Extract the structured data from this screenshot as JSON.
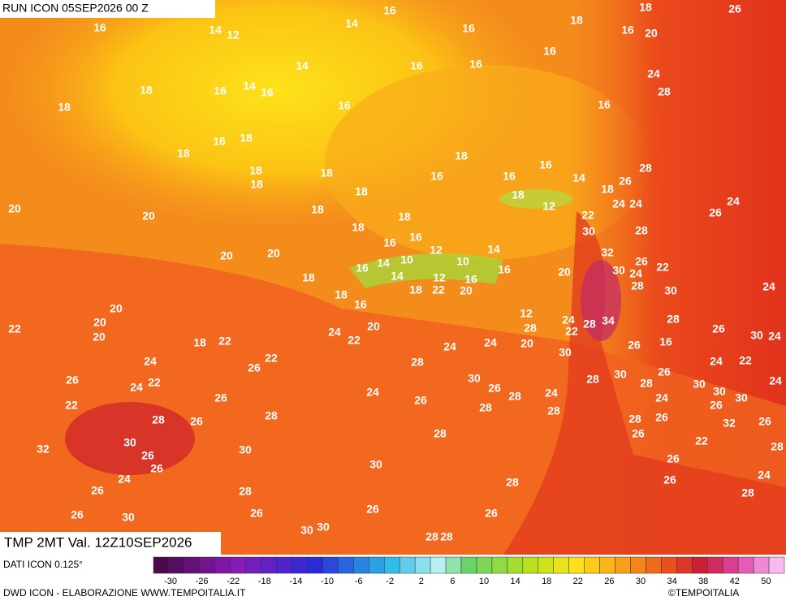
{
  "header": {
    "title": "RUN ICON 05SEP2026 00 Z"
  },
  "map": {
    "labels": [
      16,
      18,
      26,
      16,
      14,
      12,
      14,
      18,
      16,
      20,
      16,
      14,
      16,
      16,
      16,
      18,
      16,
      14,
      16,
      24,
      28,
      18,
      16,
      16,
      16,
      18,
      18,
      18,
      16,
      28,
      18,
      18,
      16,
      16,
      14,
      26,
      18,
      18,
      18,
      18,
      24,
      24,
      24,
      20,
      20,
      18,
      18,
      12,
      22,
      26,
      18,
      30,
      28,
      16,
      16,
      12,
      14,
      20,
      20,
      32,
      26,
      22,
      16,
      14,
      10,
      10,
      16,
      30,
      24,
      20,
      18,
      12,
      14,
      16,
      28,
      30,
      24,
      18,
      18,
      22,
      20,
      16,
      20,
      12,
      24,
      22,
      28,
      34,
      28,
      22,
      20,
      24,
      20,
      28,
      26,
      30,
      24,
      20,
      18,
      22,
      22,
      24,
      20,
      30,
      26,
      16,
      22,
      24,
      24,
      28,
      24,
      22,
      26,
      26,
      24,
      22,
      30,
      30,
      28,
      26,
      28,
      30,
      24,
      24,
      26,
      28,
      24,
      30,
      30,
      22,
      26,
      26,
      28,
      28,
      26,
      24,
      28,
      28,
      26,
      28,
      26,
      32,
      26,
      28,
      26,
      22,
      32,
      30,
      26,
      30,
      28,
      26,
      30,
      26,
      24,
      28,
      26,
      24,
      26,
      28,
      28,
      26,
      30,
      26,
      26,
      26,
      30,
      30,
      28,
      28
    ],
    "caption": "TMP 2MT Val. 12Z10SEP2026"
  },
  "colorbar": {
    "source": "DATI ICON 0.125°",
    "ticks": [
      -30,
      -26,
      -22,
      -18,
      -14,
      -10,
      -6,
      -2,
      2,
      6,
      10,
      14,
      18,
      22,
      26,
      30,
      34,
      38,
      42,
      50
    ]
  },
  "footer": {
    "credit": "DWD ICON - ELABORAZIONE WWW.TEMPOITALIA.IT",
    "copyright": "©TEMPOITALIA"
  }
}
